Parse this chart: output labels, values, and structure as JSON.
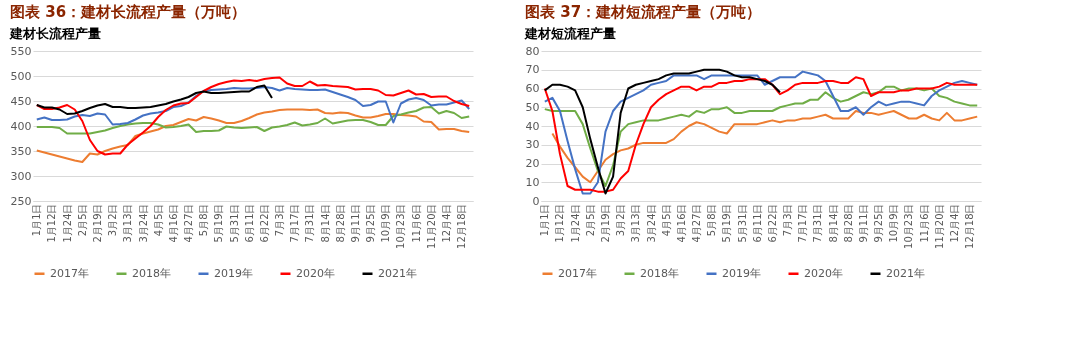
{
  "chart_data": [
    {
      "type": "line",
      "title": "图表 36：建材长流程产量（万吨）",
      "subtitle": "建材长流程产量",
      "categories": [
        "1月1日",
        null,
        "1月12日",
        null,
        "1月24日",
        null,
        "2月5日",
        null,
        "2月19日",
        null,
        "3月2日",
        null,
        "3月13日",
        null,
        "3月24日",
        null,
        "4月5日",
        null,
        "4月16日",
        null,
        "4月27日",
        null,
        "5月8日",
        null,
        "5月19日",
        null,
        "5月31日",
        null,
        "6月11日",
        null,
        "6月22日",
        null,
        "7月3日",
        null,
        "7月17日",
        null,
        "7月31日",
        null,
        "8月14日",
        null,
        "8月28日",
        null,
        "9月11日",
        null,
        "9月25日",
        null,
        "10月9日",
        null,
        "10月23日",
        null,
        "11月6日",
        null,
        "11月20日",
        null,
        "12月4日",
        null,
        "12月18日",
        null
      ],
      "ylim": [
        250,
        550
      ],
      "yticks": [
        250,
        300,
        350,
        400,
        450,
        500,
        550
      ],
      "grid": "y",
      "legend": "bottom",
      "series": [
        {
          "name": "2017年",
          "color": "#ed7d31",
          "values": [
            351,
            347,
            343,
            339,
            335,
            331,
            328,
            345,
            343,
            350,
            355,
            359,
            362,
            380,
            385,
            389,
            393,
            400,
            402,
            408,
            414,
            411,
            418,
            415,
            411,
            406,
            406,
            410,
            416,
            423,
            427,
            429,
            432,
            433,
            433,
            433,
            432,
            433,
            426,
            425,
            427,
            426,
            421,
            417,
            417,
            420,
            424,
            424,
            422,
            421,
            419,
            409,
            408,
            393,
            394,
            394,
            390,
            388
          ]
        },
        {
          "name": "2018年",
          "color": "#70ad47",
          "values": [
            398,
            398,
            398,
            396,
            385,
            385,
            385,
            385,
            388,
            391,
            396,
            400,
            403,
            405,
            406,
            406,
            403,
            397,
            398,
            400,
            403,
            388,
            390,
            390,
            391,
            399,
            397,
            396,
            397,
            398,
            390,
            397,
            399,
            402,
            407,
            401,
            403,
            406,
            415,
            405,
            408,
            411,
            412,
            412,
            408,
            402,
            402,
            420,
            423,
            427,
            430,
            437,
            438,
            425,
            430,
            426,
            416,
            419
          ]
        },
        {
          "name": "2019年",
          "color": "#4472c4",
          "values": [
            413,
            417,
            412,
            412,
            413,
            419,
            422,
            420,
            425,
            423,
            403,
            404,
            406,
            413,
            421,
            425,
            427,
            430,
            438,
            440,
            447,
            460,
            470,
            472,
            473,
            474,
            476,
            475,
            475,
            476,
            478,
            476,
            471,
            476,
            474,
            473,
            472,
            472,
            473,
            468,
            463,
            458,
            452,
            440,
            442,
            449,
            449,
            407,
            445,
            453,
            456,
            452,
            441,
            443,
            443,
            447,
            451,
            434
          ]
        },
        {
          "name": "2020年",
          "color": "#ff0000",
          "values": [
            442,
            434,
            434,
            437,
            442,
            433,
            410,
            372,
            350,
            343,
            345,
            345,
            363,
            375,
            387,
            400,
            418,
            432,
            441,
            445,
            446,
            458,
            470,
            478,
            484,
            488,
            491,
            490,
            492,
            490,
            494,
            496,
            497,
            485,
            480,
            480,
            489,
            481,
            482,
            480,
            479,
            478,
            473,
            474,
            474,
            471,
            462,
            461,
            466,
            471,
            463,
            464,
            458,
            459,
            459,
            450,
            444,
            440
          ]
        },
        {
          "name": "2021年",
          "color": "#000000",
          "values": [
            442,
            437,
            437,
            433,
            424,
            425,
            430,
            436,
            441,
            444,
            438,
            438,
            436,
            436,
            437,
            438,
            441,
            444,
            449,
            453,
            458,
            466,
            469,
            466,
            466,
            467,
            468,
            469,
            469,
            478,
            481,
            456,
            null,
            null,
            null,
            null,
            null,
            null,
            null,
            null,
            null,
            null,
            null,
            null,
            null,
            null,
            null,
            null,
            null,
            null,
            null,
            null,
            null,
            null,
            null,
            null,
            null,
            null
          ]
        }
      ]
    },
    {
      "type": "line",
      "title": "图表 37：建材短流程产量（万吨）",
      "subtitle": "建材短流程产量",
      "categories": [
        "1月1日",
        null,
        "1月12日",
        null,
        "1月24日",
        null,
        "2月5日",
        null,
        "2月19日",
        null,
        "3月2日",
        null,
        "3月13日",
        null,
        "3月24日",
        null,
        "4月5日",
        null,
        "4月16日",
        null,
        "4月27日",
        null,
        "5月8日",
        null,
        "5月19日",
        null,
        "5月31日",
        null,
        "6月11日",
        null,
        "6月22日",
        null,
        "7月3日",
        null,
        "7月17日",
        null,
        "7月31日",
        null,
        "8月14日",
        null,
        "8月28日",
        null,
        "9月11日",
        null,
        "9月25日",
        null,
        "10月9日",
        null,
        "10月23日",
        null,
        "11月6日",
        null,
        "11月20日",
        null,
        "12月4日",
        null,
        "12月18日",
        null
      ],
      "ylim": [
        0,
        80
      ],
      "yticks": [
        0,
        10,
        20,
        30,
        40,
        50,
        60,
        70,
        80
      ],
      "grid": "y",
      "legend": "bottom",
      "series": [
        {
          "name": "2017年",
          "color": "#ed7d31",
          "values": [
            null,
            36,
            29,
            23,
            18,
            13,
            10,
            16,
            22,
            25,
            27,
            28,
            30,
            31,
            31,
            31,
            31,
            33,
            37,
            40,
            42,
            41,
            39,
            37,
            36,
            41,
            41,
            41,
            41,
            42,
            43,
            42,
            43,
            43,
            44,
            44,
            45,
            46,
            44,
            44,
            44,
            48,
            47,
            47,
            46,
            47,
            48,
            46,
            44,
            44,
            46,
            44,
            43,
            47,
            43,
            43,
            44,
            45
          ]
        },
        {
          "name": "2018年",
          "color": "#70ad47",
          "values": [
            49,
            48,
            48,
            48,
            48,
            41,
            28,
            16,
            8,
            19,
            37,
            41,
            42,
            43,
            43,
            43,
            44,
            45,
            46,
            45,
            48,
            47,
            49,
            49,
            50,
            47,
            47,
            48,
            48,
            48,
            48,
            50,
            51,
            52,
            52,
            54,
            54,
            58,
            55,
            53,
            54,
            56,
            58,
            57,
            58,
            61,
            61,
            59,
            60,
            60,
            59,
            60,
            56,
            55,
            53,
            52,
            51,
            51
          ]
        },
        {
          "name": "2019年",
          "color": "#4472c4",
          "values": [
            53,
            55,
            48,
            32,
            17,
            4,
            4,
            10,
            37,
            48,
            53,
            55,
            57,
            59,
            62,
            63,
            64,
            67,
            67,
            67,
            67,
            65,
            67,
            67,
            67,
            67,
            67,
            67,
            67,
            62,
            64,
            66,
            66,
            66,
            69,
            68,
            67,
            64,
            56,
            48,
            48,
            50,
            46,
            50,
            53,
            51,
            52,
            53,
            53,
            52,
            51,
            56,
            59,
            61,
            63,
            64,
            63,
            62
          ]
        },
        {
          "name": "2020年",
          "color": "#ff0000",
          "values": [
            60,
            48,
            25,
            8,
            6,
            6,
            6,
            5,
            5,
            6,
            12,
            16,
            30,
            41,
            50,
            54,
            57,
            59,
            61,
            61,
            59,
            61,
            61,
            63,
            63,
            64,
            64,
            65,
            65,
            65,
            62,
            57,
            59,
            62,
            63,
            63,
            63,
            64,
            64,
            63,
            63,
            66,
            65,
            56,
            58,
            58,
            58,
            59,
            59,
            60,
            60,
            60,
            61,
            63,
            62,
            62,
            62,
            62
          ]
        },
        {
          "name": "2021年",
          "color": "#000000",
          "values": [
            59,
            62,
            62,
            61,
            59,
            50,
            33,
            18,
            4,
            13,
            47,
            60,
            62,
            63,
            64,
            65,
            67,
            68,
            68,
            68,
            69,
            70,
            70,
            70,
            69,
            67,
            66,
            66,
            65,
            64,
            62,
            58,
            null,
            null,
            null,
            null,
            null,
            null,
            null,
            null,
            null,
            null,
            null,
            null,
            null,
            null,
            null,
            null,
            null,
            null,
            null,
            null,
            null,
            null,
            null,
            null,
            null,
            null
          ]
        }
      ]
    }
  ]
}
